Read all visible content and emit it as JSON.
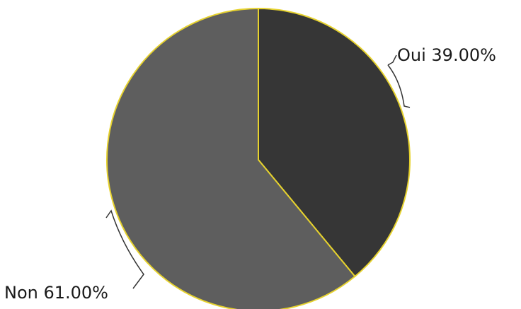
{
  "chart_data": {
    "type": "pie",
    "slices": [
      {
        "label": "Oui",
        "value": 39.0,
        "display": "Oui 39.00%",
        "color": "#363636"
      },
      {
        "label": "Non",
        "value": 61.0,
        "display": "Non 61.00%",
        "color": "#5e5e5e"
      }
    ],
    "start_angle_deg": 0,
    "direction": "clockwise",
    "slice_outline_color": "#e6d22e",
    "label_color": "#1a1a1a",
    "legend": "none",
    "title": ""
  }
}
